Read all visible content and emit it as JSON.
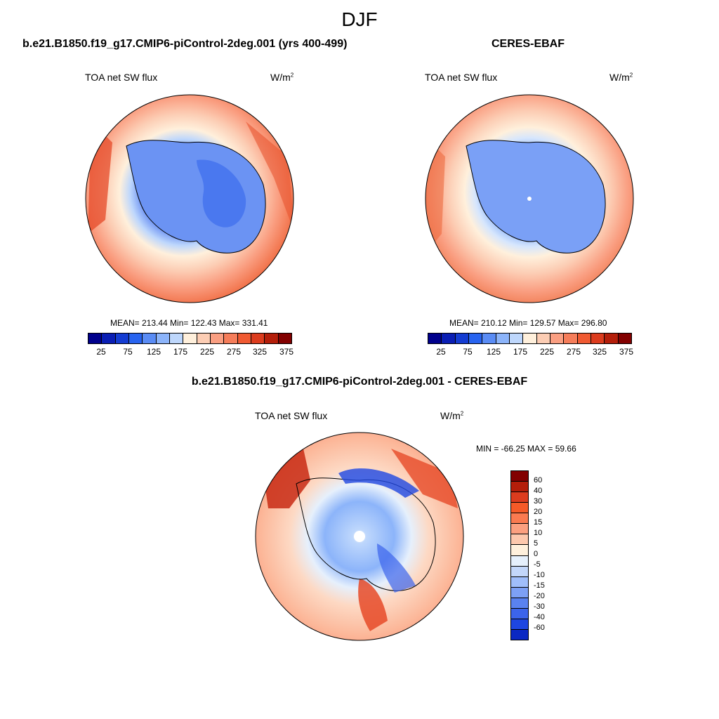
{
  "figure": {
    "season": "DJF",
    "var_name": "TOA net SW flux",
    "units_base": "W/m",
    "units_exp": "2"
  },
  "panels": {
    "model": {
      "title": "b.e21.B1850.f19_g17.CMIP6-piControl-2deg.001 (yrs 400-499)",
      "stats": "MEAN= 213.44  Min= 122.43  Max= 331.41"
    },
    "obs": {
      "title": "CERES-EBAF",
      "stats": "MEAN= 210.12  Min= 129.57  Max= 296.80"
    },
    "diff": {
      "title": "b.e21.B1850.f19_g17.CMIP6-piControl-2deg.001 - CERES-EBAF",
      "minmax": "MIN = -66.25 MAX =  59.66"
    }
  },
  "colorbar_abs": {
    "colors": [
      "#00008c",
      "#0a1eb4",
      "#143cd2",
      "#2864f0",
      "#5a8cf5",
      "#8cb4fa",
      "#bed7fc",
      "#fff0dc",
      "#fccdb4",
      "#fa9f82",
      "#f57d5a",
      "#f05a32",
      "#dc3c1e",
      "#b41e0a",
      "#820000"
    ],
    "tick_labels": [
      "25",
      "75",
      "125",
      "175",
      "225",
      "275",
      "325",
      "375"
    ]
  },
  "colorbar_diff": {
    "colors": [
      "#820000",
      "#b41e0a",
      "#dc3c1e",
      "#f55a28",
      "#fa7a50",
      "#fca080",
      "#fdc8ad",
      "#fff0dc",
      "#e6f0fc",
      "#c3d7fa",
      "#a0befa",
      "#7da0f5",
      "#5a82f0",
      "#3c64eb",
      "#1e46e1",
      "#0a28c3",
      "#00008c"
    ],
    "tick_labels": [
      "60",
      "40",
      "30",
      "20",
      "15",
      "10",
      "5",
      "0",
      "-5",
      "-10",
      "-15",
      "-20",
      "-30",
      "-40",
      "-60"
    ]
  }
}
